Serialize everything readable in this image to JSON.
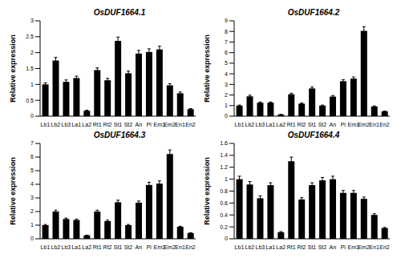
{
  "chart_data": [
    {
      "type": "bar",
      "title": "OsDUF1664.1",
      "y_label": "Relative expression",
      "categories": [
        "Lb1",
        "Lb2",
        "Lb3",
        "La1",
        "La2",
        "Rt1",
        "Rt2",
        "St1",
        "St2",
        "An",
        "Pi",
        "Em1",
        "Em2",
        "En1",
        "En2"
      ],
      "values": [
        1.0,
        1.75,
        1.08,
        1.2,
        0.17,
        1.45,
        1.13,
        2.37,
        1.35,
        1.97,
        2.02,
        2.1,
        0.97,
        0.72,
        0.22
      ],
      "errors": [
        0.05,
        0.1,
        0.06,
        0.06,
        0.02,
        0.07,
        0.06,
        0.12,
        0.07,
        0.1,
        0.1,
        0.1,
        0.05,
        0.04,
        0.02
      ],
      "color": "#000000",
      "ylim": [
        0,
        3
      ],
      "yticks": [
        0,
        0.5,
        1,
        1.5,
        2,
        2.5,
        3
      ],
      "grid": false
    },
    {
      "type": "bar",
      "title": "OsDUF1664.2",
      "y_label": "Relative expression",
      "categories": [
        "Lb1",
        "Lb2",
        "Lb3",
        "La1",
        "La2",
        "Rt1",
        "Rt2",
        "St1",
        "St2",
        "An",
        "Pi",
        "Em1",
        "Em2",
        "En1",
        "En2"
      ],
      "values": [
        1.0,
        1.88,
        1.27,
        1.28,
        0.15,
        2.07,
        1.18,
        2.62,
        1.0,
        1.85,
        3.3,
        3.55,
        8.05,
        0.92,
        0.45
      ],
      "errors": [
        0.05,
        0.1,
        0.07,
        0.06,
        0.02,
        0.1,
        0.06,
        0.13,
        0.05,
        0.1,
        0.15,
        0.15,
        0.4,
        0.05,
        0.03
      ],
      "color": "#000000",
      "ylim": [
        0,
        9
      ],
      "yticks": [
        0,
        1,
        2,
        3,
        4,
        5,
        6,
        7,
        8,
        9
      ],
      "grid": false
    },
    {
      "type": "bar",
      "title": "OsDUF1664.3",
      "y_label": "Relative expression",
      "categories": [
        "Lb1",
        "Lb2",
        "Lb3",
        "La1",
        "La2",
        "Rt1",
        "Rt2",
        "St1",
        "St2",
        "An",
        "Pi",
        "Em1",
        "Em2",
        "En1",
        "En2"
      ],
      "values": [
        1.0,
        2.0,
        1.45,
        1.38,
        0.25,
        2.0,
        1.3,
        2.68,
        1.0,
        2.65,
        3.95,
        4.05,
        6.22,
        0.88,
        0.42
      ],
      "errors": [
        0.05,
        0.1,
        0.07,
        0.07,
        0.02,
        0.1,
        0.07,
        0.15,
        0.05,
        0.12,
        0.2,
        0.2,
        0.3,
        0.04,
        0.03
      ],
      "color": "#000000",
      "ylim": [
        0,
        7
      ],
      "yticks": [
        0,
        1,
        2,
        3,
        4,
        5,
        6,
        7
      ],
      "grid": false
    },
    {
      "type": "bar",
      "title": "OsDUF1664.4",
      "y_label": "Relative expression",
      "categories": [
        "Lb1",
        "Lb2",
        "Lb3",
        "La1",
        "La2",
        "Rt1",
        "Rt2",
        "St1",
        "St2",
        "An",
        "Pi",
        "Em1",
        "Em2",
        "En1",
        "En2"
      ],
      "values": [
        1.0,
        0.91,
        0.68,
        0.9,
        0.11,
        1.3,
        0.66,
        0.9,
        0.98,
        1.0,
        0.77,
        0.77,
        0.67,
        0.4,
        0.18
      ],
      "errors": [
        0.05,
        0.05,
        0.04,
        0.04,
        0.01,
        0.07,
        0.03,
        0.04,
        0.05,
        0.05,
        0.04,
        0.04,
        0.03,
        0.02,
        0.01
      ],
      "color": "#000000",
      "ylim": [
        0,
        1.6
      ],
      "yticks": [
        0,
        0.2,
        0.4,
        0.6,
        0.8,
        1,
        1.2,
        1.4,
        1.6
      ],
      "grid": false
    }
  ]
}
